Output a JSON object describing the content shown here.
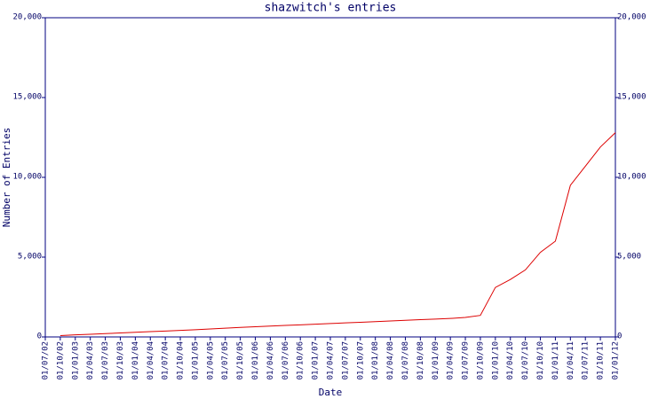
{
  "chart_data": {
    "type": "line",
    "title": "shazwitch's entries",
    "x_label": "Date",
    "y_label": "Number of Entries",
    "categories": [
      "01/07/02",
      "01/10/02",
      "01/01/03",
      "01/04/03",
      "01/07/03",
      "01/10/03",
      "01/01/04",
      "01/04/04",
      "01/07/04",
      "01/10/04",
      "01/01/05",
      "01/04/05",
      "01/07/05",
      "01/10/05",
      "01/01/06",
      "01/04/06",
      "01/07/06",
      "01/10/06",
      "01/01/07",
      "01/04/07",
      "01/07/07",
      "01/10/07",
      "01/01/08",
      "01/04/08",
      "01/07/08",
      "01/10/08",
      "01/01/09",
      "01/04/09",
      "01/07/09",
      "01/10/09",
      "01/01/10",
      "01/04/10",
      "01/07/10",
      "01/10/10",
      "01/01/11",
      "01/04/11",
      "01/07/11",
      "01/10/11",
      "01/01/12"
    ],
    "series": [
      {
        "name": "entries",
        "color": "#dd0000",
        "values": [
          null,
          80,
          130,
          170,
          210,
          250,
          290,
          330,
          370,
          410,
          450,
          500,
          550,
          600,
          640,
          680,
          720,
          760,
          800,
          840,
          880,
          920,
          960,
          1000,
          1040,
          1080,
          1120,
          1160,
          1220,
          1350,
          3100,
          3600,
          4200,
          5300,
          6000,
          9500,
          10700,
          11900,
          12800
        ]
      }
    ],
    "ylim": [
      0,
      20000
    ],
    "yticks": [
      0,
      {
        "value": 5000,
        "label": "5,000"
      },
      {
        "value": 10000,
        "label": "10,000"
      },
      {
        "value": 15000,
        "label": "15,000"
      },
      {
        "value": 20000,
        "label": "20,000"
      }
    ],
    "axis_color": "#000080"
  }
}
